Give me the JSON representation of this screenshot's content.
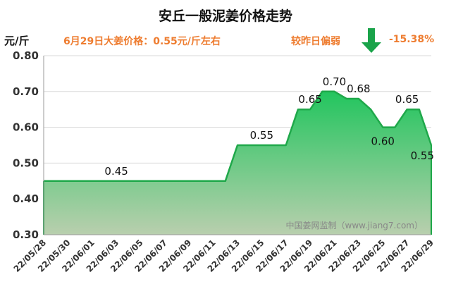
{
  "header": {
    "title": "安丘一般泥姜价格走势",
    "unit": "元/斤",
    "price_note": "6月29日大姜价格：0.55元/斤左右",
    "compare_label": "较昨日偏弱",
    "compare_value": "-15.38%",
    "compare_icon": "down-arrow-icon"
  },
  "colors": {
    "accent": "#ee7d31",
    "line": "#1fa84a",
    "arrow": "#1aa34a",
    "fill_top": "#22c55e",
    "fill_bottom": "#b9cfae"
  },
  "watermark": "中国姜网监制（www.jiang7.com）",
  "chart_data": {
    "type": "area",
    "title": "安丘一般泥姜价格走势",
    "ylabel": "元/斤",
    "xlabel": "",
    "ylim": [
      0.3,
      0.8
    ],
    "yticks": [
      "0.30",
      "0.40",
      "0.50",
      "0.60",
      "0.70",
      "0.80"
    ],
    "grid": true,
    "x": [
      "22/05/28",
      "22/05/29",
      "22/05/30",
      "22/05/31",
      "22/06/01",
      "22/06/02",
      "22/06/03",
      "22/06/04",
      "22/06/05",
      "22/06/06",
      "22/06/07",
      "22/06/08",
      "22/06/09",
      "22/06/10",
      "22/06/11",
      "22/06/12",
      "22/06/13",
      "22/06/14",
      "22/06/15",
      "22/06/16",
      "22/06/17",
      "22/06/18",
      "22/06/19",
      "22/06/20",
      "22/06/21",
      "22/06/22",
      "22/06/23",
      "22/06/24",
      "22/06/25",
      "22/06/26",
      "22/06/27",
      "22/06/28",
      "22/06/29"
    ],
    "xtick_labels": [
      "22/05/28",
      "22/05/30",
      "22/06/01",
      "22/06/03",
      "22/06/05",
      "22/06/07",
      "22/06/09",
      "22/06/11",
      "22/06/13",
      "22/06/15",
      "22/06/17",
      "22/06/19",
      "22/06/21",
      "22/06/23",
      "22/06/25",
      "22/06/27",
      "22/06/29"
    ],
    "values": [
      0.45,
      0.45,
      0.45,
      0.45,
      0.45,
      0.45,
      0.45,
      0.45,
      0.45,
      0.45,
      0.45,
      0.45,
      0.45,
      0.45,
      0.45,
      0.45,
      0.55,
      0.55,
      0.55,
      0.55,
      0.55,
      0.65,
      0.65,
      0.7,
      0.7,
      0.68,
      0.68,
      0.65,
      0.6,
      0.6,
      0.65,
      0.65,
      0.55
    ],
    "data_labels": [
      {
        "x": "22/06/03",
        "text": "0.45"
      },
      {
        "x": "22/06/15",
        "text": "0.55"
      },
      {
        "x": "22/06/19",
        "text": "0.65"
      },
      {
        "x": "22/06/21",
        "text": "0.70"
      },
      {
        "x": "22/06/23",
        "text": "0.68"
      },
      {
        "x": "22/06/25",
        "text": "0.60"
      },
      {
        "x": "22/06/27",
        "text": "0.65"
      },
      {
        "x": "22/06/29",
        "text": "0.55"
      }
    ]
  }
}
